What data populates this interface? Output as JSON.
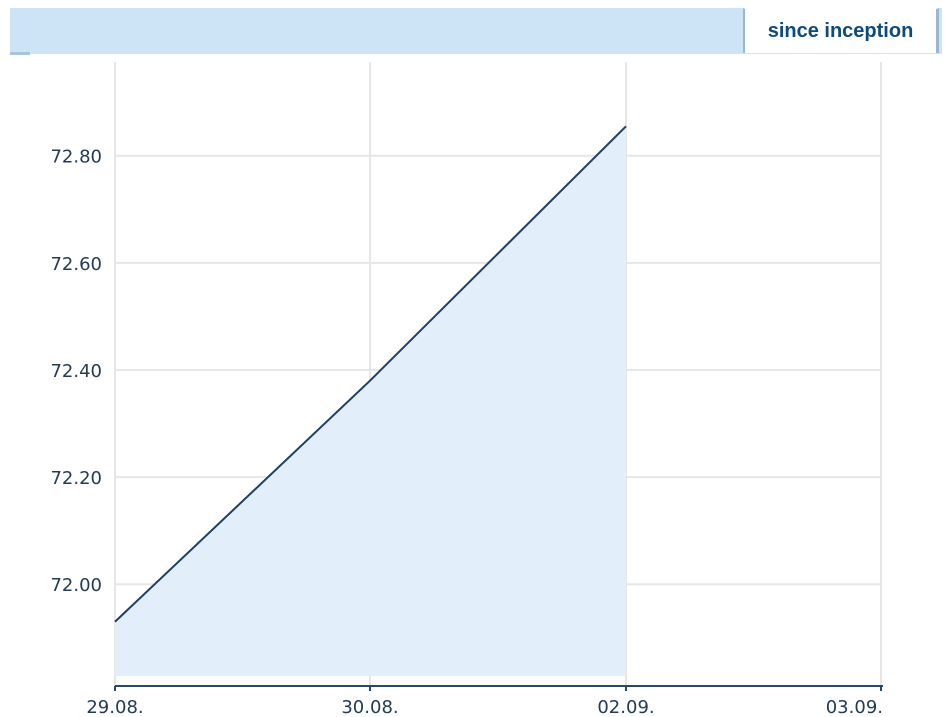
{
  "tabs": {
    "active_label": "since inception"
  },
  "chart_data": {
    "type": "area",
    "x": [
      "29.08.",
      "30.08.",
      "02.09.",
      "03.09."
    ],
    "series": [
      {
        "values": [
          71.93,
          72.38,
          72.855,
          null
        ]
      }
    ],
    "y_ticks": [
      "72.00",
      "72.20",
      "72.40",
      "72.60",
      "72.80"
    ],
    "ylim": [
      71.81,
      72.975
    ],
    "grid": true,
    "colors": {
      "line": "#1f3f66",
      "fill": "#e2eef9",
      "grid": "#e6e6e6",
      "axis": "#2b4768"
    }
  }
}
